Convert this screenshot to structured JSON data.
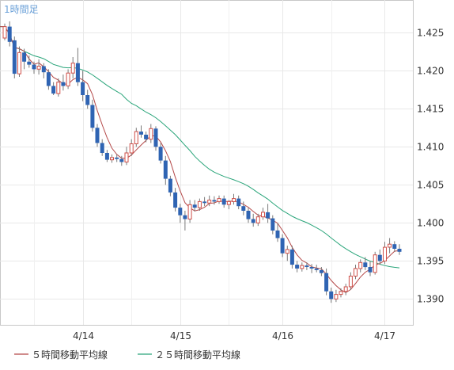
{
  "chart_data": {
    "type": "candlestick",
    "title": "1時間足",
    "x_ticks": [
      "4/14",
      "4/15",
      "4/16",
      "4/17"
    ],
    "y_ticks": [
      1.39,
      1.395,
      1.4,
      1.405,
      1.41,
      1.415,
      1.42,
      1.425
    ],
    "y_tick_labels": [
      "1.390",
      "1.395",
      "1.400",
      "1.405",
      "1.410",
      "1.415",
      "1.420",
      "1.425"
    ],
    "ylim": [
      1.3866,
      1.4293
    ],
    "grid": true,
    "legend_position": "bottom",
    "colors": {
      "up": "#d0504a",
      "down": "#2f64b3",
      "ma5": "#b44848",
      "ma25": "#2aa57a",
      "grid": "#e8e8e8",
      "axis": "#c8c8c8",
      "title": "#6aa0d8"
    },
    "candles": [
      [
        1.4243,
        1.4262,
        1.424,
        1.4258
      ],
      [
        1.4258,
        1.4265,
        1.4232,
        1.4238
      ],
      [
        1.424,
        1.4245,
        1.419,
        1.4196
      ],
      [
        1.4196,
        1.4232,
        1.4192,
        1.4224
      ],
      [
        1.4224,
        1.4229,
        1.4202,
        1.4212
      ],
      [
        1.4212,
        1.422,
        1.4204,
        1.4208
      ],
      [
        1.4208,
        1.4212,
        1.4196,
        1.4202
      ],
      [
        1.4202,
        1.4215,
        1.4195,
        1.4206
      ],
      [
        1.4206,
        1.421,
        1.419,
        1.4198
      ],
      [
        1.4198,
        1.4202,
        1.4175,
        1.418
      ],
      [
        1.418,
        1.4185,
        1.4168,
        1.417
      ],
      [
        1.417,
        1.419,
        1.4166,
        1.4185
      ],
      [
        1.4185,
        1.4195,
        1.4174,
        1.418
      ],
      [
        1.418,
        1.4202,
        1.4176,
        1.4197
      ],
      [
        1.4197,
        1.4218,
        1.419,
        1.421
      ],
      [
        1.421,
        1.423,
        1.418,
        1.4185
      ],
      [
        1.4185,
        1.42,
        1.416,
        1.4168
      ],
      [
        1.4168,
        1.4175,
        1.415,
        1.4155
      ],
      [
        1.4155,
        1.4162,
        1.412,
        1.4125
      ],
      [
        1.4125,
        1.413,
        1.41,
        1.4105
      ],
      [
        1.4105,
        1.411,
        1.4088,
        1.4092
      ],
      [
        1.4092,
        1.4096,
        1.408,
        1.4083
      ],
      [
        1.4083,
        1.409,
        1.4079,
        1.4086
      ],
      [
        1.4086,
        1.409,
        1.408,
        1.4084
      ],
      [
        1.4084,
        1.4088,
        1.4075,
        1.408
      ],
      [
        1.408,
        1.41,
        1.4076,
        1.4092
      ],
      [
        1.4092,
        1.411,
        1.4088,
        1.4104
      ],
      [
        1.4104,
        1.4125,
        1.41,
        1.412
      ],
      [
        1.412,
        1.4128,
        1.4112,
        1.4116
      ],
      [
        1.4116,
        1.412,
        1.4106,
        1.411
      ],
      [
        1.411,
        1.413,
        1.4105,
        1.4124
      ],
      [
        1.4124,
        1.4127,
        1.4095,
        1.41
      ],
      [
        1.41,
        1.4105,
        1.4078,
        1.4082
      ],
      [
        1.4082,
        1.4088,
        1.405,
        1.4058
      ],
      [
        1.4058,
        1.4062,
        1.4035,
        1.404
      ],
      [
        1.404,
        1.4046,
        1.4015,
        1.402
      ],
      [
        1.402,
        1.4025,
        1.4,
        1.401
      ],
      [
        1.401,
        1.4016,
        1.399,
        1.4005
      ],
      [
        1.4005,
        1.403,
        1.4,
        1.4024
      ],
      [
        1.4024,
        1.403,
        1.4015,
        1.402
      ],
      [
        1.402,
        1.4032,
        1.4016,
        1.4028
      ],
      [
        1.4028,
        1.4034,
        1.4022,
        1.4026
      ],
      [
        1.4026,
        1.4036,
        1.4022,
        1.403
      ],
      [
        1.403,
        1.4035,
        1.4024,
        1.4028
      ],
      [
        1.4028,
        1.4036,
        1.4025,
        1.4032
      ],
      [
        1.4032,
        1.4036,
        1.402,
        1.4024
      ],
      [
        1.4024,
        1.403,
        1.4018,
        1.4028
      ],
      [
        1.4028,
        1.4038,
        1.4024,
        1.4032
      ],
      [
        1.4032,
        1.4036,
        1.4018,
        1.4022
      ],
      [
        1.4022,
        1.4028,
        1.401,
        1.4016
      ],
      [
        1.4016,
        1.402,
        1.4,
        1.4005
      ],
      [
        1.4005,
        1.4012,
        1.3995,
        1.4
      ],
      [
        1.4,
        1.4012,
        1.3996,
        1.4008
      ],
      [
        1.4008,
        1.402,
        1.4004,
        1.4014
      ],
      [
        1.4014,
        1.4025,
        1.4,
        1.4006
      ],
      [
        1.4006,
        1.401,
        1.3985,
        1.399
      ],
      [
        1.399,
        1.4,
        1.3975,
        1.398
      ],
      [
        1.398,
        1.3985,
        1.3955,
        1.396
      ],
      [
        1.396,
        1.397,
        1.395,
        1.3965
      ],
      [
        1.3965,
        1.397,
        1.394,
        1.3945
      ],
      [
        1.3945,
        1.395,
        1.3935,
        1.394
      ],
      [
        1.394,
        1.3948,
        1.3936,
        1.3944
      ],
      [
        1.3944,
        1.3948,
        1.3938,
        1.3942
      ],
      [
        1.3942,
        1.3946,
        1.3934,
        1.394
      ],
      [
        1.394,
        1.3945,
        1.3935,
        1.3938
      ],
      [
        1.3938,
        1.3942,
        1.393,
        1.3934
      ],
      [
        1.3934,
        1.394,
        1.3905,
        1.391
      ],
      [
        1.391,
        1.3915,
        1.3895,
        1.39
      ],
      [
        1.39,
        1.3912,
        1.3896,
        1.3906
      ],
      [
        1.3906,
        1.3914,
        1.3902,
        1.391
      ],
      [
        1.391,
        1.392,
        1.3905,
        1.3916
      ],
      [
        1.3916,
        1.3935,
        1.3912,
        1.393
      ],
      [
        1.393,
        1.3945,
        1.3926,
        1.394
      ],
      [
        1.394,
        1.3952,
        1.3935,
        1.3948
      ],
      [
        1.3948,
        1.3955,
        1.3938,
        1.3942
      ],
      [
        1.3942,
        1.395,
        1.393,
        1.3935
      ],
      [
        1.3935,
        1.3962,
        1.3932,
        1.3958
      ],
      [
        1.3958,
        1.3965,
        1.3945,
        1.395
      ],
      [
        1.395,
        1.3975,
        1.3946,
        1.3968
      ],
      [
        1.3968,
        1.398,
        1.396,
        1.3972
      ],
      [
        1.3972,
        1.3976,
        1.3962,
        1.3966
      ],
      [
        1.3966,
        1.3972,
        1.3958,
        1.3962
      ]
    ]
  },
  "legend": {
    "ma5_label": "５時間移動平均線",
    "ma25_label": "２５時間移動平均線"
  }
}
